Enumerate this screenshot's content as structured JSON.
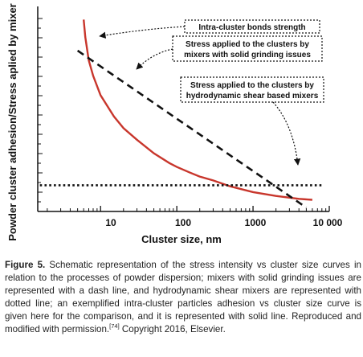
{
  "chart_data": {
    "type": "line",
    "title": "",
    "xlabel": "Cluster size, nm",
    "ylabel": "Powder cluster adhesion/Stress aplied by mixer",
    "x_scale": "log",
    "xlim": [
      1.5,
      10000
    ],
    "x_ticks": [
      "10",
      "100",
      "1000",
      "10 000"
    ],
    "x_tick_values": [
      10,
      100,
      1000,
      10000
    ],
    "y_ticks_labeled": false,
    "grid": false,
    "series": [
      {
        "label_ref": "Intra-cluster bonds strength",
        "style": "solid",
        "color": "#c8362c",
        "x": [
          6,
          6.3,
          7,
          8,
          10,
          15,
          20,
          30,
          50,
          80,
          100,
          150,
          200,
          300,
          500,
          1000,
          2000,
          4000,
          6000
        ],
        "y": [
          0.99,
          0.9,
          0.78,
          0.7,
          0.6,
          0.49,
          0.43,
          0.37,
          0.3,
          0.25,
          0.23,
          0.2,
          0.18,
          0.16,
          0.13,
          0.1,
          0.08,
          0.065,
          0.06
        ]
      },
      {
        "label_ref": "Stress applied to the clusters by mixers with solid grinding issues",
        "style": "dashed",
        "color": "#111111",
        "x": [
          5,
          5000
        ],
        "y": [
          0.83,
          0.02
        ]
      },
      {
        "label_ref": "Stress applied to the clusters by hydrodynamic shear based mixers",
        "style": "dotted",
        "color": "#111111",
        "x": [
          1.6,
          8000
        ],
        "y": [
          0.135,
          0.135
        ]
      }
    ],
    "annotations": [
      "Intra-cluster  bonds strength",
      "Stress applied to the clusters by",
      "mixers with solid grinding issues",
      "Stress applied to the clusters by",
      "hydrodynamic shear based mixers"
    ]
  },
  "caption": {
    "label": "Figure 5.",
    "text": "Schematic representation of the stress intensity vs cluster size curves in relation to the processes of powder dispersion; mixers with solid grinding issues are represented with a dash line, and hydrodynamic shear mixers are represented with dotted line; an exemplified intra-cluster particles adhesion vs cluster size curve is given here for the comparison, and it is represented with solid line. Reproduced and modified with permission.",
    "ref": "[74]",
    "copyright": "Copyright 2016, Elsevier."
  }
}
